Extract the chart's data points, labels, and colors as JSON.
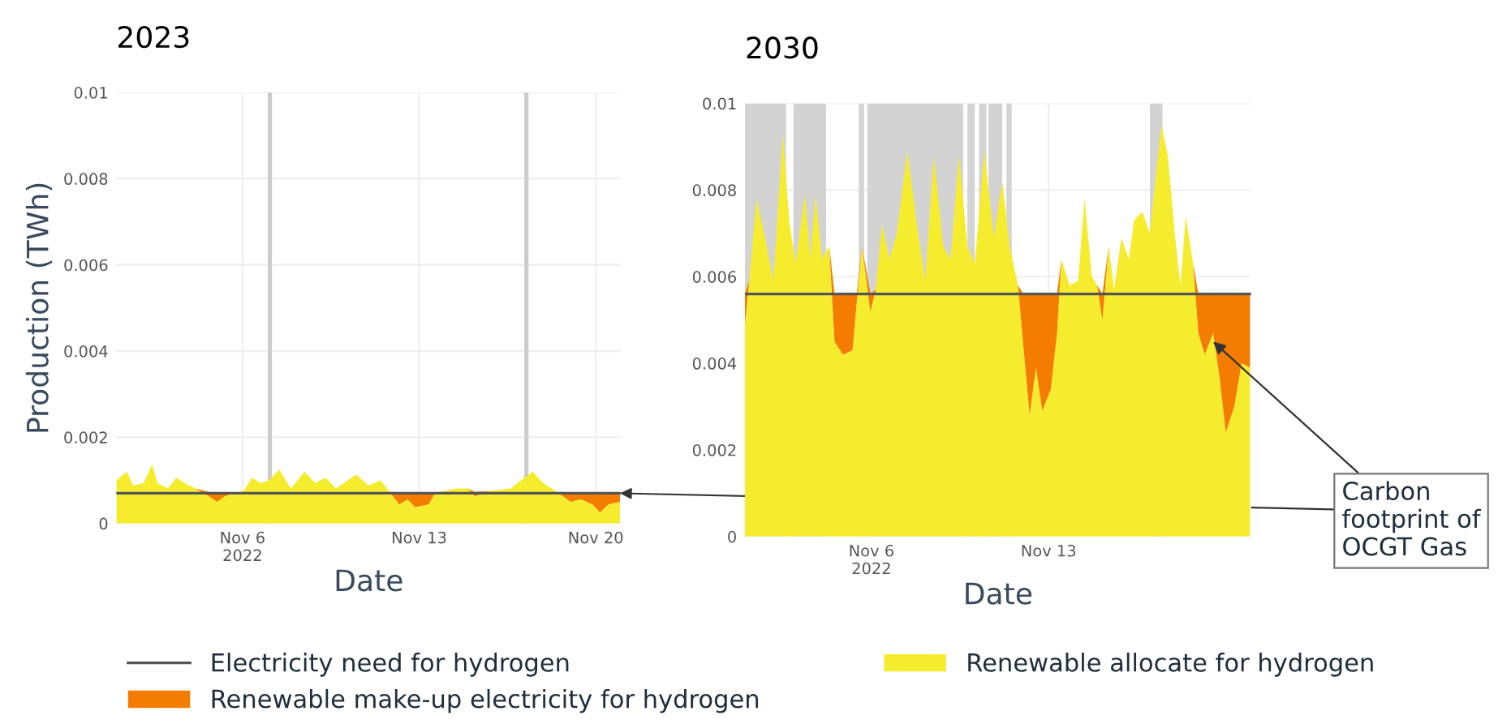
{
  "chart_data": [
    {
      "type": "area",
      "title": "2023",
      "xlabel": "Date",
      "ylabel": "Production (TWh)",
      "stacked": true,
      "grid": true,
      "legend": "bottom",
      "xlim": [
        "2022-11-01",
        "2022-11-21"
      ],
      "ylim": [
        0,
        0.01
      ],
      "xticks": [
        {
          "value": "2022-11-06",
          "label": "Nov 6\n2022"
        },
        {
          "value": "2022-11-13",
          "label": "Nov 13"
        },
        {
          "value": "2022-11-20",
          "label": "Nov 20"
        }
      ],
      "yticks": [
        0,
        0.002,
        0.004,
        0.006,
        0.008,
        0.01
      ],
      "x": [
        "2022-11-01T00:00",
        "2022-11-01T10:00",
        "2022-11-01T16:00",
        "2022-11-02T02:00",
        "2022-11-02T10:00",
        "2022-11-02T15:00",
        "2022-11-03T01:00",
        "2022-11-03T09:00",
        "2022-11-03T17:00",
        "2022-11-04T03:00",
        "2022-11-04T16:00",
        "2022-11-05T00:00",
        "2022-11-05T07:00",
        "2022-11-05T15:00",
        "2022-11-06T01:00",
        "2022-11-06T09:00",
        "2022-11-06T17:00",
        "2022-11-07T01:00",
        "2022-11-07T11:00",
        "2022-11-07T22:00",
        "2022-11-08T11:00",
        "2022-11-08T21:00",
        "2022-11-09T07:00",
        "2022-11-09T17:00",
        "2022-11-10T12:00",
        "2022-11-11T00:00",
        "2022-11-11T11:00",
        "2022-11-11T21:00",
        "2022-11-12T05:00",
        "2022-11-12T13:00",
        "2022-11-12T20:00",
        "2022-11-13T09:00",
        "2022-11-13T15:00",
        "2022-11-14T11:00",
        "2022-11-14T22:00",
        "2022-11-15T05:00",
        "2022-11-15T18:00",
        "2022-11-16T15:00",
        "2022-11-17T01:00",
        "2022-11-17T12:00",
        "2022-11-17T22:00",
        "2022-11-18T13:00",
        "2022-11-19T00:00",
        "2022-11-19T10:00",
        "2022-11-19T21:00",
        "2022-11-20T04:00",
        "2022-11-20T12:00",
        "2022-11-20T23:00"
      ],
      "series": [
        {
          "name": "Renewable allocate for hydrogen",
          "color": "#f5ec2e",
          "values": [
            0.001,
            0.0012,
            0.00088,
            0.00094,
            0.00138,
            0.00094,
            0.00081,
            0.00106,
            0.00094,
            0.00081,
            0.00063,
            0.0005,
            0.00063,
            0.0007,
            0.00075,
            0.00106,
            0.00094,
            0.001,
            0.00125,
            0.00081,
            0.0012,
            0.00094,
            0.00106,
            0.00081,
            0.00113,
            0.00088,
            0.001,
            0.0007,
            0.00044,
            0.00056,
            0.00038,
            0.00044,
            0.0007,
            0.00081,
            0.00081,
            0.00063,
            0.00075,
            0.00081,
            0.001,
            0.0012,
            0.00094,
            0.0007,
            0.0005,
            0.00056,
            0.00044,
            0.00025,
            0.00044,
            0.0005
          ]
        },
        {
          "name": "Renewable make-up electricity for hydrogen",
          "color": "#f47c00",
          "values": [
            0,
            0,
            0,
            0,
            0,
            0,
            0,
            0,
            0,
            0,
            0.0001,
            0.0002,
            0.0001,
            0,
            0,
            0,
            0,
            0,
            0,
            0,
            0,
            0,
            0,
            0,
            0,
            0,
            0,
            0,
            0.00026,
            0.00014,
            0.00032,
            0.00026,
            0,
            0,
            0,
            0.0001,
            0,
            0,
            0,
            0,
            0,
            0,
            0.0002,
            0.00014,
            0.00026,
            0.00045,
            0.00026,
            0.0002
          ]
        },
        {
          "name": "Electricity need for hydrogen",
          "type": "line",
          "color": "#555555",
          "values": [
            0.0007,
            0.0007,
            0.0007,
            0.0007,
            0.0007,
            0.0007,
            0.0007,
            0.0007,
            0.0007,
            0.0007,
            0.0007,
            0.0007,
            0.0007,
            0.0007,
            0.0007,
            0.0007,
            0.0007,
            0.0007,
            0.0007,
            0.0007,
            0.0007,
            0.0007,
            0.0007,
            0.0007,
            0.0007,
            0.0007,
            0.0007,
            0.0007,
            0.0007,
            0.0007,
            0.0007,
            0.0007,
            0.0007,
            0.0007,
            0.0007,
            0.0007,
            0.0007,
            0.0007,
            0.0007,
            0.0007,
            0.0007,
            0.0007,
            0.0007,
            0.0007,
            0.0007,
            0.0007,
            0.0007,
            0.0007
          ]
        }
      ],
      "bands": [
        {
          "axis": "x",
          "from": "2022-11-07T00:00",
          "to": "2022-11-07T04:00",
          "color": "#cccccc"
        },
        {
          "axis": "x",
          "from": "2022-11-17T04:00",
          "to": "2022-11-17T08:00",
          "color": "#cccccc"
        }
      ]
    },
    {
      "type": "area",
      "title": "2030",
      "xlabel": "Date",
      "stacked": true,
      "grid": true,
      "xlim": [
        "2022-11-01",
        "2022-11-21"
      ],
      "ylim": [
        0,
        0.01
      ],
      "xticks": [
        {
          "value": "2022-11-06",
          "label": "Nov 6\n2022"
        },
        {
          "value": "2022-11-13",
          "label": "Nov 13"
        }
      ],
      "yticks": [
        0,
        0.002,
        0.004,
        0.006,
        0.008,
        0.01
      ],
      "x": [
        "2022-11-01T00:00",
        "2022-11-01T04:00",
        "2022-11-01T11:00",
        "2022-11-01T19:00",
        "2022-11-02T03:00",
        "2022-11-02T12:00",
        "2022-11-02T18:00",
        "2022-11-03T00:00",
        "2022-11-03T09:00",
        "2022-11-03T14:00",
        "2022-11-03T19:00",
        "2022-11-04T01:00",
        "2022-11-04T08:00",
        "2022-11-04T13:00",
        "2022-11-04T21:00",
        "2022-11-05T06:00",
        "2022-11-05T10:00",
        "2022-11-05T15:00",
        "2022-11-05T23:00",
        "2022-11-06T04:00",
        "2022-11-06T10:00",
        "2022-11-06T17:00",
        "2022-11-07T00:00",
        "2022-11-07T10:00",
        "2022-11-07T18:00",
        "2022-11-08T03:00",
        "2022-11-08T11:00",
        "2022-11-08T20:00",
        "2022-11-09T03:00",
        "2022-11-09T11:00",
        "2022-11-09T19:00",
        "2022-11-10T02:00",
        "2022-11-10T11:00",
        "2022-11-10T20:00",
        "2022-11-11T04:00",
        "2022-11-11T11:00",
        "2022-11-11T19:00",
        "2022-11-12T00:00",
        "2022-11-12T06:00",
        "2022-11-12T12:00",
        "2022-11-12T18:00",
        "2022-11-13T02:00",
        "2022-11-13T08:00",
        "2022-11-13T12:00",
        "2022-11-13T20:00",
        "2022-11-14T04:00",
        "2022-11-14T10:00",
        "2022-11-14T17:00",
        "2022-11-14T22:00",
        "2022-11-15T03:00",
        "2022-11-15T09:00",
        "2022-11-15T14:00",
        "2022-11-15T21:00",
        "2022-11-16T04:00",
        "2022-11-16T09:00",
        "2022-11-16T17:00",
        "2022-11-17T00:00",
        "2022-11-17T06:00",
        "2022-11-17T11:00",
        "2022-11-17T17:00",
        "2022-11-18T00:00",
        "2022-11-18T05:00",
        "2022-11-18T10:00",
        "2022-11-18T17:00",
        "2022-11-18T22:00",
        "2022-11-19T04:00",
        "2022-11-19T12:00",
        "2022-11-19T18:00",
        "2022-11-20T00:00",
        "2022-11-20T08:00",
        "2022-11-20T15:00",
        "2022-11-20T23:00"
      ],
      "series": [
        {
          "color": "#f5ec2e",
          "values": [
            0.0049,
            0.0059,
            0.0078,
            0.0069,
            0.0059,
            0.0093,
            0.0073,
            0.0063,
            0.0079,
            0.0064,
            0.0079,
            0.0064,
            0.0067,
            0.0045,
            0.0042,
            0.0043,
            0.0054,
            0.0067,
            0.0052,
            0.0057,
            0.0072,
            0.0064,
            0.007,
            0.0089,
            0.0074,
            0.0059,
            0.0088,
            0.0067,
            0.0064,
            0.0088,
            0.0067,
            0.0063,
            0.0089,
            0.0069,
            0.0082,
            0.0067,
            0.0058,
            0.0044,
            0.0028,
            0.0039,
            0.0029,
            0.0034,
            0.0047,
            0.0064,
            0.0058,
            0.0059,
            0.0078,
            0.006,
            0.0058,
            0.005,
            0.0067,
            0.0057,
            0.0069,
            0.0064,
            0.0073,
            0.0075,
            0.007,
            0.0084,
            0.0095,
            0.0088,
            0.0069,
            0.0058,
            0.0074,
            0.0063,
            0.0047,
            0.0042,
            0.0047,
            0.0037,
            0.0024,
            0.003,
            0.004,
            0.0039
          ]
        },
        {
          "color": "#f47c00",
          "values": [
            0.0007,
            0,
            0,
            0,
            0,
            0,
            0,
            0,
            0,
            0,
            0,
            0,
            0,
            0.0011,
            0.0014,
            0.0013,
            0.0002,
            0,
            0.0004,
            0,
            0,
            0,
            0,
            0,
            0,
            0,
            0,
            0,
            0,
            0,
            0,
            0,
            0,
            0,
            0,
            0,
            0,
            0.0012,
            0.0028,
            0.0017,
            0.0027,
            0.0022,
            0.0009,
            0,
            0,
            0,
            0,
            0,
            0,
            0.0006,
            0,
            0,
            0,
            0,
            0,
            0,
            0,
            0,
            0,
            0,
            0,
            0,
            0,
            0,
            0.0009,
            0.0014,
            0.0009,
            0.0019,
            0.0032,
            0.0026,
            0.0016,
            0.0017
          ]
        },
        {
          "type": "line",
          "color": "#555555",
          "values": [
            0.0056,
            0.0056,
            0.0056,
            0.0056,
            0.0056,
            0.0056,
            0.0056,
            0.0056,
            0.0056,
            0.0056,
            0.0056,
            0.0056,
            0.0056,
            0.0056,
            0.0056,
            0.0056,
            0.0056,
            0.0056,
            0.0056,
            0.0056,
            0.0056,
            0.0056,
            0.0056,
            0.0056,
            0.0056,
            0.0056,
            0.0056,
            0.0056,
            0.0056,
            0.0056,
            0.0056,
            0.0056,
            0.0056,
            0.0056,
            0.0056,
            0.0056,
            0.0056,
            0.0056,
            0.0056,
            0.0056,
            0.0056,
            0.0056,
            0.0056,
            0.0056,
            0.0056,
            0.0056,
            0.0056,
            0.0056,
            0.0056,
            0.0056,
            0.0056,
            0.0056,
            0.0056,
            0.0056,
            0.0056,
            0.0056,
            0.0056,
            0.0056,
            0.0056,
            0.0056,
            0.0056,
            0.0056,
            0.0056,
            0.0056,
            0.0056,
            0.0056,
            0.0056,
            0.0056,
            0.0056,
            0.0056,
            0.0056,
            0.0056
          ]
        }
      ],
      "bands": [
        {
          "axis": "x",
          "from": "2022-11-01T00:00",
          "to": "2022-11-02T15:00",
          "color": "#d3d3d3"
        },
        {
          "axis": "x",
          "from": "2022-11-02T22:00",
          "to": "2022-11-04T05:00",
          "color": "#d3d3d3"
        },
        {
          "axis": "x",
          "from": "2022-11-05T12:00",
          "to": "2022-11-05T17:00",
          "color": "#d3d3d3"
        },
        {
          "axis": "x",
          "from": "2022-11-05T20:00",
          "to": "2022-11-09T15:00",
          "color": "#d3d3d3"
        },
        {
          "axis": "x",
          "from": "2022-11-09T19:00",
          "to": "2022-11-10T02:00",
          "color": "#d3d3d3"
        },
        {
          "axis": "x",
          "from": "2022-11-10T06:00",
          "to": "2022-11-10T13:00",
          "color": "#d3d3d3"
        },
        {
          "axis": "x",
          "from": "2022-11-10T15:00",
          "to": "2022-11-11T04:00",
          "color": "#d3d3d3"
        },
        {
          "axis": "x",
          "from": "2022-11-11T08:00",
          "to": "2022-11-11T13:00",
          "color": "#d3d3d3"
        },
        {
          "axis": "x",
          "from": "2022-11-17T00:00",
          "to": "2022-11-17T12:00",
          "color": "#d3d3d3"
        }
      ],
      "annotations": [
        {
          "text": "Carbon\nfootprint of\nOCGT Gas",
          "x": "2022-11-19T12:00",
          "y": 0.0045
        }
      ]
    }
  ]
}
